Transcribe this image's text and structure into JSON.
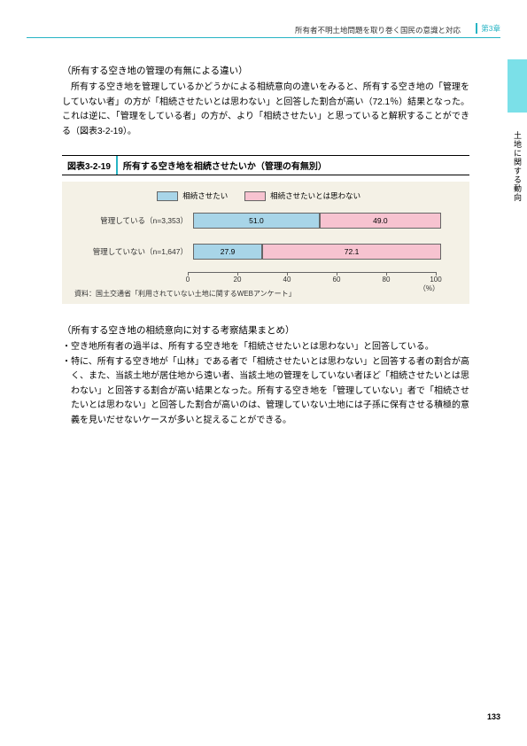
{
  "header": {
    "running_title": "所有者不明土地問題を取り巻く国民の意識と対応",
    "chapter_label": "第3章"
  },
  "side_label": "土地に関する動向",
  "section1": {
    "heading": "（所有する空き地の管理の有無による違い）",
    "p1": "所有する空き地を管理しているかどうかによる相続意向の違いをみると、所有する空き地の「管理をしていない者」の方が「相続させたいとは思わない」と回答した割合が高い（72.1％）結果となった。これは逆に、「管理をしている者」の方が、より「相続させたい」と思っていると解釈することができる（図表3-2-19）。"
  },
  "figure": {
    "number": "図表3-2-19",
    "caption": "所有する空き地を相続させたいか（管理の有無別）",
    "legend": {
      "item1_label": "相続させたい",
      "item1_color": "#a8d5e8",
      "item2_label": "相続させたいとは思わない",
      "item2_color": "#f7c3d0"
    },
    "rows": [
      {
        "label": "管理している（n=3,353）",
        "v1": 51.0,
        "v2": 49.0,
        "v1_text": "51.0",
        "v2_text": "49.0"
      },
      {
        "label": "管理していない（n=1,647）",
        "v1": 27.9,
        "v2": 72.1,
        "v1_text": "27.9",
        "v2_text": "72.1"
      }
    ],
    "axis": {
      "ticks": [
        0,
        20,
        40,
        60,
        80,
        100
      ],
      "tick_labels": [
        "0",
        "20",
        "40",
        "60",
        "80",
        "100"
      ],
      "unit": "（%）"
    },
    "source": "資料：国土交通省「利用されていない土地に関するWEBアンケート」"
  },
  "section2": {
    "heading": "（所有する空き地の相続意向に対する考察結果まとめ）",
    "bullets": [
      "・空き地所有者の過半は、所有する空き地を「相続させたいとは思わない」と回答している。",
      "・特に、所有する空き地が「山林」である者で「相続させたいとは思わない」と回答する者の割合が高く、また、当該土地が居住地から遠い者、当該土地の管理をしていない者ほど「相続させたいとは思わない」と回答する割合が高い結果となった。所有する空き地を「管理していない」者で「相続させたいとは思わない」と回答した割合が高いのは、管理していない土地には子孫に保有させる積極的意義を見いだせないケースが多いと捉えることができる。"
    ]
  },
  "page_number": "133"
}
